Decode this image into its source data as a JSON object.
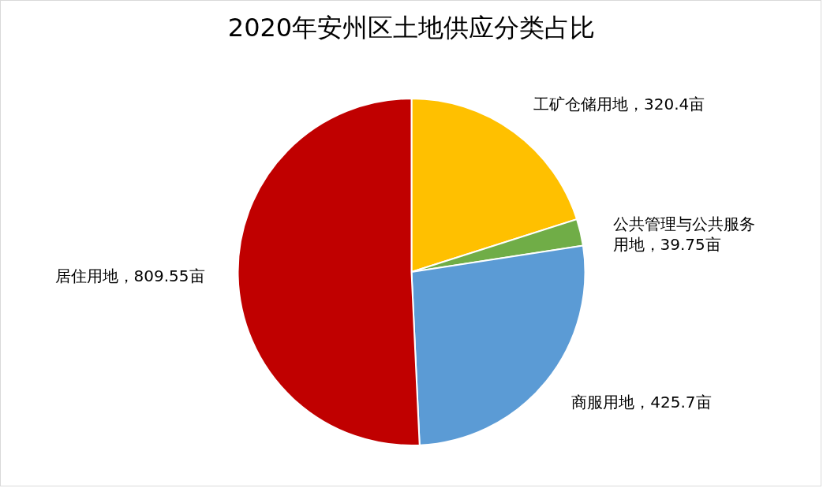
{
  "chart_data": {
    "type": "pie",
    "title": "2020年安州区土地供应分类占比",
    "categories": [
      "工矿仓储用地",
      "公共管理与公共服务用地",
      "商服用地",
      "居住用地"
    ],
    "values": [
      320.4,
      39.75,
      425.7,
      809.55
    ],
    "colors": [
      "#ffc000",
      "#70ad47",
      "#5b9bd5",
      "#c00000"
    ],
    "value_labels": [
      "320.4亩",
      "39.75亩",
      "425.7亩",
      "809.55亩"
    ],
    "legend": false
  }
}
